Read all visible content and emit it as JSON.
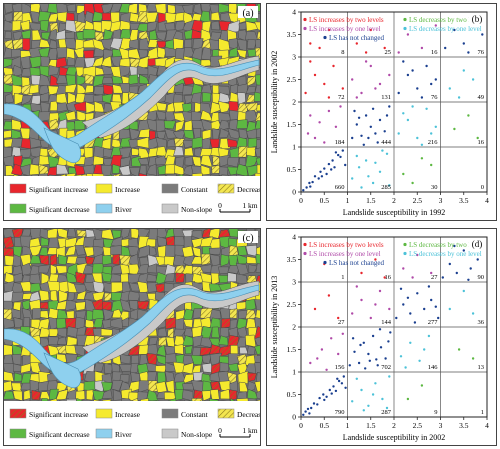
{
  "maps": [
    {
      "panel_label": "(a)",
      "legend": [
        {
          "label": "Significant increase",
          "color": "#e8262d",
          "pattern": "solid"
        },
        {
          "label": "Increase",
          "color": "#f5ea2e",
          "pattern": "solid"
        },
        {
          "label": "Constant",
          "color": "#7b7b7b",
          "pattern": "solid"
        },
        {
          "label": "Decrease",
          "color": "#f3e650",
          "pattern": "hatch"
        },
        {
          "label": "Significant decrease",
          "color": "#5db842",
          "pattern": "solid"
        },
        {
          "label": "River",
          "color": "#8ed0ee",
          "pattern": "solid"
        },
        {
          "label": "Non-slope",
          "color": "#c9c9c9",
          "pattern": "solid"
        }
      ],
      "scale": {
        "start": "0",
        "end": "1 km"
      }
    },
    {
      "panel_label": "(c)",
      "legend": [
        {
          "label": "Significant increase",
          "color": "#e8262d",
          "pattern": "hatch"
        },
        {
          "label": "Increase",
          "color": "#f5ea2e",
          "pattern": "solid"
        },
        {
          "label": "Constant",
          "color": "#7b7b7b",
          "pattern": "solid"
        },
        {
          "label": "Decrease",
          "color": "#f3e650",
          "pattern": "hatch"
        },
        {
          "label": "Significant decrease",
          "color": "#5db842",
          "pattern": "solid"
        },
        {
          "label": "River",
          "color": "#8ed0ee",
          "pattern": "solid"
        },
        {
          "label": "Non-slope",
          "color": "#c9c9c9",
          "pattern": "solid"
        }
      ],
      "scale": {
        "start": "0",
        "end": "1 km"
      }
    }
  ],
  "colors": {
    "increase_two": "#e8262d",
    "increase_one": "#b04aa8",
    "unchanged": "#1a3f8f",
    "decrease_one": "#4cc2d8",
    "decrease_two": "#5db842",
    "grid": "#555555",
    "axis": "#222222"
  },
  "chart_data": [
    {
      "type": "scatter",
      "panel_label": "(b)",
      "xlabel": "Landslide susceptibility in 1992",
      "ylabel": "Landslide susceptibility in 2002",
      "xlim": [
        0,
        4
      ],
      "ylim": [
        0,
        4
      ],
      "xticks": [
        "0",
        "0.5",
        "1",
        "1.5",
        "2",
        "2.5",
        "3",
        "3.5",
        "4"
      ],
      "yticks": [
        "0",
        "0.5",
        "1",
        "1.5",
        "2",
        "2.5",
        "3",
        "3.5",
        "4"
      ],
      "grid_lines": [
        1,
        2,
        3
      ],
      "legend_entries": [
        {
          "text": "LS increases by two levels",
          "color_key": "increase_two"
        },
        {
          "text": "LS decreases by two levels",
          "color_key": "decrease_two"
        },
        {
          "text": "LS increases by one level",
          "color_key": "increase_one"
        },
        {
          "text": "LS decreases by one level",
          "color_key": "decrease_one"
        },
        {
          "text": "LS has not changed",
          "color_key": "unchanged"
        }
      ],
      "cell_counts": [
        {
          "col": 0,
          "row": 0,
          "value": "660"
        },
        {
          "col": 1,
          "row": 0,
          "value": "285"
        },
        {
          "col": 2,
          "row": 0,
          "value": "30"
        },
        {
          "col": 3,
          "row": 0,
          "value": "0"
        },
        {
          "col": 0,
          "row": 1,
          "value": "184"
        },
        {
          "col": 1,
          "row": 1,
          "value": "444"
        },
        {
          "col": 2,
          "row": 1,
          "value": "216"
        },
        {
          "col": 3,
          "row": 1,
          "value": "16"
        },
        {
          "col": 0,
          "row": 2,
          "value": "72"
        },
        {
          "col": 1,
          "row": 2,
          "value": "131"
        },
        {
          "col": 2,
          "row": 2,
          "value": "76"
        },
        {
          "col": 3,
          "row": 2,
          "value": "49"
        },
        {
          "col": 0,
          "row": 3,
          "value": "8"
        },
        {
          "col": 1,
          "row": 3,
          "value": "25"
        },
        {
          "col": 2,
          "row": 3,
          "value": "16"
        },
        {
          "col": 3,
          "row": 3,
          "value": "76"
        }
      ],
      "points": [
        [
          0.05,
          0.04
        ],
        [
          0.12,
          0.1
        ],
        [
          0.18,
          0.2
        ],
        [
          0.25,
          0.22
        ],
        [
          0.3,
          0.35
        ],
        [
          0.38,
          0.3
        ],
        [
          0.42,
          0.45
        ],
        [
          0.5,
          0.52
        ],
        [
          0.55,
          0.4
        ],
        [
          0.6,
          0.62
        ],
        [
          0.68,
          0.7
        ],
        [
          0.72,
          0.55
        ],
        [
          0.8,
          0.82
        ],
        [
          0.85,
          0.78
        ],
        [
          0.9,
          0.92
        ],
        [
          0.95,
          0.6
        ],
        [
          0.2,
          0.12
        ],
        [
          0.45,
          0.35
        ],
        [
          0.65,
          0.5
        ],
        [
          0.75,
          0.88
        ],
        [
          1.1,
          0.3
        ],
        [
          1.25,
          0.55
        ],
        [
          1.4,
          0.7
        ],
        [
          1.55,
          0.2
        ],
        [
          1.7,
          0.45
        ],
        [
          1.85,
          0.85
        ],
        [
          1.2,
          0.8
        ],
        [
          1.45,
          0.35
        ],
        [
          1.6,
          0.65
        ],
        [
          1.9,
          0.15
        ],
        [
          1.3,
          0.1
        ],
        [
          1.75,
          0.92
        ],
        [
          2.2,
          0.4
        ],
        [
          2.6,
          0.75
        ],
        [
          2.4,
          0.2
        ],
        [
          2.8,
          0.6
        ],
        [
          0.15,
          1.3
        ],
        [
          0.4,
          1.55
        ],
        [
          0.6,
          1.8
        ],
        [
          0.3,
          1.2
        ],
        [
          0.75,
          1.45
        ],
        [
          0.85,
          1.9
        ],
        [
          0.5,
          1.1
        ],
        [
          0.2,
          1.7
        ],
        [
          1.1,
          1.2
        ],
        [
          1.2,
          1.5
        ],
        [
          1.3,
          1.25
        ],
        [
          1.4,
          1.7
        ],
        [
          1.5,
          1.45
        ],
        [
          1.55,
          1.85
        ],
        [
          1.65,
          1.1
        ],
        [
          1.7,
          1.6
        ],
        [
          1.8,
          1.35
        ],
        [
          1.9,
          1.9
        ],
        [
          1.15,
          1.8
        ],
        [
          1.35,
          1.05
        ],
        [
          1.6,
          1.3
        ],
        [
          1.85,
          1.7
        ],
        [
          1.25,
          1.65
        ],
        [
          1.45,
          1.2
        ],
        [
          2.1,
          1.3
        ],
        [
          2.3,
          1.6
        ],
        [
          2.5,
          1.2
        ],
        [
          2.7,
          1.85
        ],
        [
          2.9,
          1.45
        ],
        [
          2.2,
          1.75
        ],
        [
          2.6,
          1.05
        ],
        [
          2.8,
          1.3
        ],
        [
          2.4,
          1.9
        ],
        [
          3.3,
          1.4
        ],
        [
          3.6,
          1.7
        ],
        [
          3.8,
          1.2
        ],
        [
          0.1,
          2.2
        ],
        [
          0.3,
          2.6
        ],
        [
          0.5,
          2.4
        ],
        [
          0.7,
          2.8
        ],
        [
          0.9,
          2.3
        ],
        [
          0.6,
          2.1
        ],
        [
          0.2,
          2.9
        ],
        [
          1.1,
          2.5
        ],
        [
          1.3,
          2.2
        ],
        [
          1.5,
          2.8
        ],
        [
          1.7,
          2.4
        ],
        [
          1.9,
          2.6
        ],
        [
          1.4,
          2.9
        ],
        [
          1.2,
          2.1
        ],
        [
          1.6,
          2.3
        ],
        [
          2.1,
          2.2
        ],
        [
          2.3,
          2.6
        ],
        [
          2.5,
          2.3
        ],
        [
          2.7,
          2.8
        ],
        [
          2.9,
          2.5
        ],
        [
          2.2,
          2.9
        ],
        [
          2.6,
          2.1
        ],
        [
          2.8,
          2.4
        ],
        [
          2.4,
          2.7
        ],
        [
          3.2,
          2.3
        ],
        [
          3.5,
          2.7
        ],
        [
          3.7,
          2.5
        ],
        [
          3.4,
          2.1
        ],
        [
          0.2,
          3.3
        ],
        [
          0.6,
          3.6
        ],
        [
          0.4,
          3.2
        ],
        [
          1.2,
          3.3
        ],
        [
          1.5,
          3.6
        ],
        [
          1.8,
          3.2
        ],
        [
          1.4,
          3.1
        ],
        [
          2.3,
          3.5
        ],
        [
          2.6,
          3.2
        ],
        [
          2.9,
          3.7
        ],
        [
          2.1,
          3.1
        ],
        [
          3.1,
          3.2
        ],
        [
          3.3,
          3.6
        ],
        [
          3.5,
          3.3
        ],
        [
          3.7,
          3.8
        ],
        [
          3.9,
          3.5
        ],
        [
          3.6,
          3.1
        ]
      ]
    },
    {
      "type": "scatter",
      "panel_label": "(d)",
      "xlabel": "Landslide susceptibility in 2002",
      "ylabel": "Landslide susceptibility in 2013",
      "xlim": [
        0,
        4
      ],
      "ylim": [
        0,
        4
      ],
      "xticks": [
        "0",
        "0.5",
        "1",
        "1.5",
        "2",
        "2.5",
        "3",
        "3.5",
        "4"
      ],
      "yticks": [
        "0",
        "0.5",
        "1",
        "1.5",
        "2",
        "2.5",
        "3",
        "3.5",
        "4"
      ],
      "grid_lines": [
        1,
        2,
        3
      ],
      "legend_entries": [
        {
          "text": "LS increases by two levels",
          "color_key": "increase_two"
        },
        {
          "text": "LS decreases by two levels",
          "color_key": "decrease_two"
        },
        {
          "text": "LS increases by one level",
          "color_key": "increase_one"
        },
        {
          "text": "LS decreases by one level",
          "color_key": "decrease_one"
        },
        {
          "text": "LS has not changed",
          "color_key": "unchanged"
        }
      ],
      "cell_counts": [
        {
          "col": 0,
          "row": 0,
          "value": "790"
        },
        {
          "col": 1,
          "row": 0,
          "value": "287"
        },
        {
          "col": 2,
          "row": 0,
          "value": "9"
        },
        {
          "col": 3,
          "row": 0,
          "value": "1"
        },
        {
          "col": 0,
          "row": 1,
          "value": "156"
        },
        {
          "col": 1,
          "row": 1,
          "value": "702"
        },
        {
          "col": 2,
          "row": 1,
          "value": "146"
        },
        {
          "col": 3,
          "row": 1,
          "value": "13"
        },
        {
          "col": 0,
          "row": 2,
          "value": "27"
        },
        {
          "col": 1,
          "row": 2,
          "value": "144"
        },
        {
          "col": 2,
          "row": 2,
          "value": "277"
        },
        {
          "col": 3,
          "row": 2,
          "value": "36"
        },
        {
          "col": 0,
          "row": 3,
          "value": "1"
        },
        {
          "col": 1,
          "row": 3,
          "value": "16"
        },
        {
          "col": 2,
          "row": 3,
          "value": "27"
        },
        {
          "col": 3,
          "row": 3,
          "value": "90"
        }
      ],
      "points": [
        [
          0.05,
          0.05
        ],
        [
          0.1,
          0.12
        ],
        [
          0.15,
          0.18
        ],
        [
          0.22,
          0.2
        ],
        [
          0.28,
          0.3
        ],
        [
          0.35,
          0.28
        ],
        [
          0.4,
          0.42
        ],
        [
          0.48,
          0.5
        ],
        [
          0.55,
          0.45
        ],
        [
          0.62,
          0.6
        ],
        [
          0.7,
          0.68
        ],
        [
          0.75,
          0.58
        ],
        [
          0.82,
          0.8
        ],
        [
          0.88,
          0.75
        ],
        [
          0.92,
          0.9
        ],
        [
          0.96,
          0.65
        ],
        [
          0.18,
          0.08
        ],
        [
          0.5,
          0.38
        ],
        [
          0.66,
          0.52
        ],
        [
          0.78,
          0.85
        ],
        [
          1.1,
          0.35
        ],
        [
          1.3,
          0.6
        ],
        [
          1.45,
          0.25
        ],
        [
          1.6,
          0.75
        ],
        [
          1.75,
          0.4
        ],
        [
          1.9,
          0.9
        ],
        [
          1.2,
          0.85
        ],
        [
          1.55,
          0.5
        ],
        [
          1.85,
          0.2
        ],
        [
          1.35,
          0.15
        ],
        [
          2.3,
          0.4
        ],
        [
          2.6,
          0.7
        ],
        [
          0.2,
          1.2
        ],
        [
          0.45,
          1.5
        ],
        [
          0.65,
          1.75
        ],
        [
          0.35,
          1.3
        ],
        [
          0.8,
          1.4
        ],
        [
          0.9,
          1.85
        ],
        [
          0.55,
          1.05
        ],
        [
          1.05,
          1.15
        ],
        [
          1.15,
          1.45
        ],
        [
          1.25,
          1.2
        ],
        [
          1.35,
          1.65
        ],
        [
          1.45,
          1.4
        ],
        [
          1.55,
          1.8
        ],
        [
          1.65,
          1.15
        ],
        [
          1.72,
          1.55
        ],
        [
          1.82,
          1.3
        ],
        [
          1.92,
          1.88
        ],
        [
          1.12,
          1.75
        ],
        [
          1.38,
          1.08
        ],
        [
          1.62,
          1.28
        ],
        [
          1.88,
          1.68
        ],
        [
          1.28,
          1.6
        ],
        [
          1.48,
          1.25
        ],
        [
          1.7,
          1.95
        ],
        [
          2.15,
          1.35
        ],
        [
          2.35,
          1.65
        ],
        [
          2.55,
          1.25
        ],
        [
          2.75,
          1.8
        ],
        [
          2.25,
          1.1
        ],
        [
          2.65,
          1.5
        ],
        [
          3.4,
          1.5
        ],
        [
          3.7,
          1.3
        ],
        [
          0.3,
          2.4
        ],
        [
          0.6,
          2.7
        ],
        [
          0.8,
          2.2
        ],
        [
          1.1,
          2.3
        ],
        [
          1.3,
          2.6
        ],
        [
          1.5,
          2.2
        ],
        [
          1.7,
          2.8
        ],
        [
          1.9,
          2.4
        ],
        [
          1.2,
          2.9
        ],
        [
          1.6,
          2.5
        ],
        [
          2.05,
          2.2
        ],
        [
          2.2,
          2.5
        ],
        [
          2.35,
          2.3
        ],
        [
          2.5,
          2.75
        ],
        [
          2.65,
          2.4
        ],
        [
          2.8,
          2.6
        ],
        [
          2.95,
          2.2
        ],
        [
          2.15,
          2.85
        ],
        [
          2.45,
          2.1
        ],
        [
          2.75,
          2.9
        ],
        [
          2.3,
          2.65
        ],
        [
          2.9,
          2.45
        ],
        [
          3.2,
          2.4
        ],
        [
          3.5,
          2.8
        ],
        [
          3.7,
          2.3
        ],
        [
          0.5,
          3.4
        ],
        [
          1.3,
          3.2
        ],
        [
          1.6,
          3.5
        ],
        [
          1.8,
          3.1
        ],
        [
          2.2,
          3.3
        ],
        [
          2.5,
          3.6
        ],
        [
          2.8,
          3.2
        ],
        [
          2.4,
          3.1
        ],
        [
          3.05,
          3.1
        ],
        [
          3.2,
          3.4
        ],
        [
          3.35,
          3.2
        ],
        [
          3.5,
          3.7
        ],
        [
          3.65,
          3.3
        ],
        [
          3.8,
          3.5
        ],
        [
          3.9,
          3.9
        ],
        [
          3.3,
          3.8
        ],
        [
          3.6,
          3.05
        ]
      ]
    }
  ]
}
